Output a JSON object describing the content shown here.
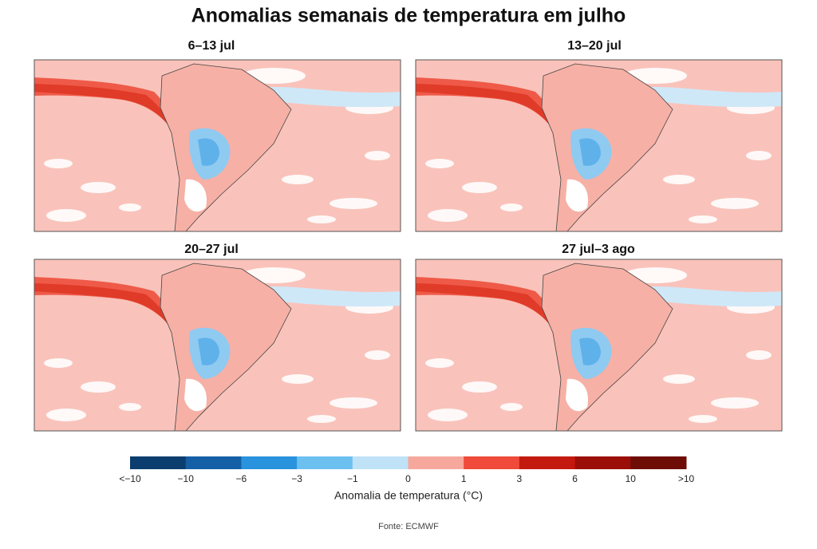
{
  "title": "Anomalias semanais de temperatura em julho",
  "panels": [
    {
      "title": "6–13 jul"
    },
    {
      "title": "13–20 jul"
    },
    {
      "title": "20–27 jul"
    },
    {
      "title": "27 jul–3 ago"
    }
  ],
  "colorbar": {
    "colors": [
      "#0b3d6e",
      "#155fa6",
      "#2a93de",
      "#6cc0f0",
      "#bfe2f7",
      "#fde0dc",
      "#f6a89c",
      "#ef4a3a",
      "#c4190f",
      "#9c0e08",
      "#6e0c06"
    ],
    "labels": [
      "<−10",
      "−10",
      "−6",
      "−3",
      "−1",
      "0",
      "1",
      "3",
      "6",
      "10",
      ">10"
    ],
    "label": "Anomalia de temperatura (°C)"
  },
  "source": "Fonte: ECMWF"
}
